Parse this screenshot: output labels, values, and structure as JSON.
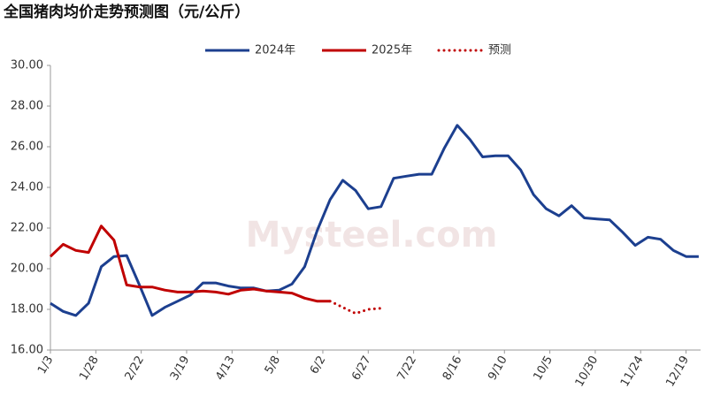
{
  "chart_data": {
    "type": "line",
    "title": "全国猪肉均价走势预测图（元/公斤）",
    "watermark": "Mysteel.com",
    "legend": "top",
    "ylim": [
      16,
      30
    ],
    "yticks": [
      {
        "value": 16,
        "label": "16.00"
      },
      {
        "value": 18,
        "label": "18.00"
      },
      {
        "value": 20,
        "label": "20.00"
      },
      {
        "value": 22,
        "label": "22.00"
      },
      {
        "value": 24,
        "label": "24.00"
      },
      {
        "value": 26,
        "label": "26.00"
      },
      {
        "value": 28,
        "label": "28.00"
      },
      {
        "value": 30,
        "label": "30.00"
      }
    ],
    "xlim": [
      3,
      361
    ],
    "xticks": [
      {
        "value": 3,
        "label": "1/3"
      },
      {
        "value": 28,
        "label": "1/28"
      },
      {
        "value": 53,
        "label": "2/22"
      },
      {
        "value": 78,
        "label": "3/19"
      },
      {
        "value": 103,
        "label": "4/13"
      },
      {
        "value": 128,
        "label": "5/8"
      },
      {
        "value": 153,
        "label": "6/2"
      },
      {
        "value": 178,
        "label": "6/27"
      },
      {
        "value": 203,
        "label": "7/22"
      },
      {
        "value": 228,
        "label": "8/16"
      },
      {
        "value": 253,
        "label": "9/10"
      },
      {
        "value": 278,
        "label": "10/5"
      },
      {
        "value": 303,
        "label": "10/30"
      },
      {
        "value": 328,
        "label": "11/24"
      },
      {
        "value": 353,
        "label": "12/19"
      }
    ],
    "series": [
      {
        "name": "2024年",
        "color": "#1c3f8f",
        "style": "solid",
        "x": [
          3,
          10,
          17,
          24,
          31,
          38,
          45,
          52,
          59,
          66,
          73,
          80,
          87,
          94,
          101,
          108,
          115,
          122,
          129,
          136,
          143,
          150,
          157,
          164,
          171,
          178,
          185,
          192,
          199,
          206,
          213,
          220,
          227,
          234,
          241,
          248,
          255,
          262,
          269,
          276,
          283,
          290,
          297,
          304,
          311,
          318,
          325,
          332,
          339,
          346,
          353,
          360
        ],
        "values": [
          18.3,
          17.9,
          17.7,
          18.3,
          20.1,
          20.6,
          20.65,
          19.2,
          17.7,
          18.1,
          18.4,
          18.7,
          19.3,
          19.3,
          19.15,
          19.05,
          19.05,
          18.9,
          18.95,
          19.25,
          20.1,
          21.9,
          23.4,
          24.35,
          23.85,
          22.95,
          23.05,
          24.45,
          24.55,
          24.65,
          24.65,
          25.95,
          27.05,
          26.35,
          25.5,
          25.55,
          25.55,
          24.85,
          23.65,
          22.95,
          22.6,
          23.1,
          22.5,
          22.45,
          22.4,
          21.8,
          21.15,
          21.55,
          21.45,
          20.9,
          20.6,
          20.6
        ]
      },
      {
        "name": "2025年",
        "color": "#c00000",
        "style": "solid",
        "x": [
          3,
          10,
          17,
          24,
          31,
          38,
          45,
          52,
          59,
          66,
          73,
          80,
          87,
          94,
          101,
          108,
          115,
          122,
          129,
          136,
          143,
          150,
          157
        ],
        "values": [
          20.6,
          21.2,
          20.9,
          20.8,
          22.1,
          21.4,
          19.2,
          19.1,
          19.1,
          18.95,
          18.85,
          18.85,
          18.9,
          18.85,
          18.75,
          18.95,
          19.0,
          18.9,
          18.85,
          18.8,
          18.55,
          18.4,
          18.4
        ]
      },
      {
        "name": "预测",
        "color": "#c00000",
        "style": "dotted",
        "x": [
          157,
          164,
          171,
          178,
          185
        ],
        "values": [
          18.4,
          18.1,
          17.8,
          18.0,
          18.05
        ]
      }
    ]
  }
}
